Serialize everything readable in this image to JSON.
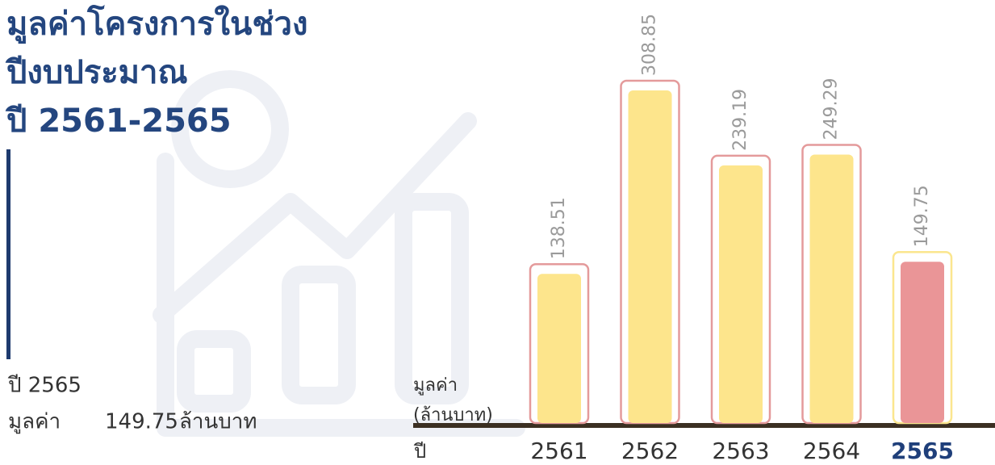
{
  "chart_data": {
    "type": "bar",
    "title": [
      "มูลค่าโครงการในช่วง",
      "ปีงบประมาณ",
      "ปี 2561-2565"
    ],
    "y_label": [
      "มูลค่า",
      "(ล้านบาท)"
    ],
    "x_label": "ปี",
    "categories": [
      "2561",
      "2562",
      "2563",
      "2564",
      "2565"
    ],
    "values": [
      138.51,
      308.85,
      239.19,
      249.29,
      149.75
    ],
    "color": "#fde58c",
    "outline_color": "#e49a9b",
    "highlight_index": 4,
    "highlight_color": "#ea9597",
    "highlight_outline_color": "#fbe68e",
    "summary": {
      "year": "ปี 2565",
      "label": "มูลค่า",
      "value": 149.75,
      "unit": "ล้านบาท"
    }
  }
}
